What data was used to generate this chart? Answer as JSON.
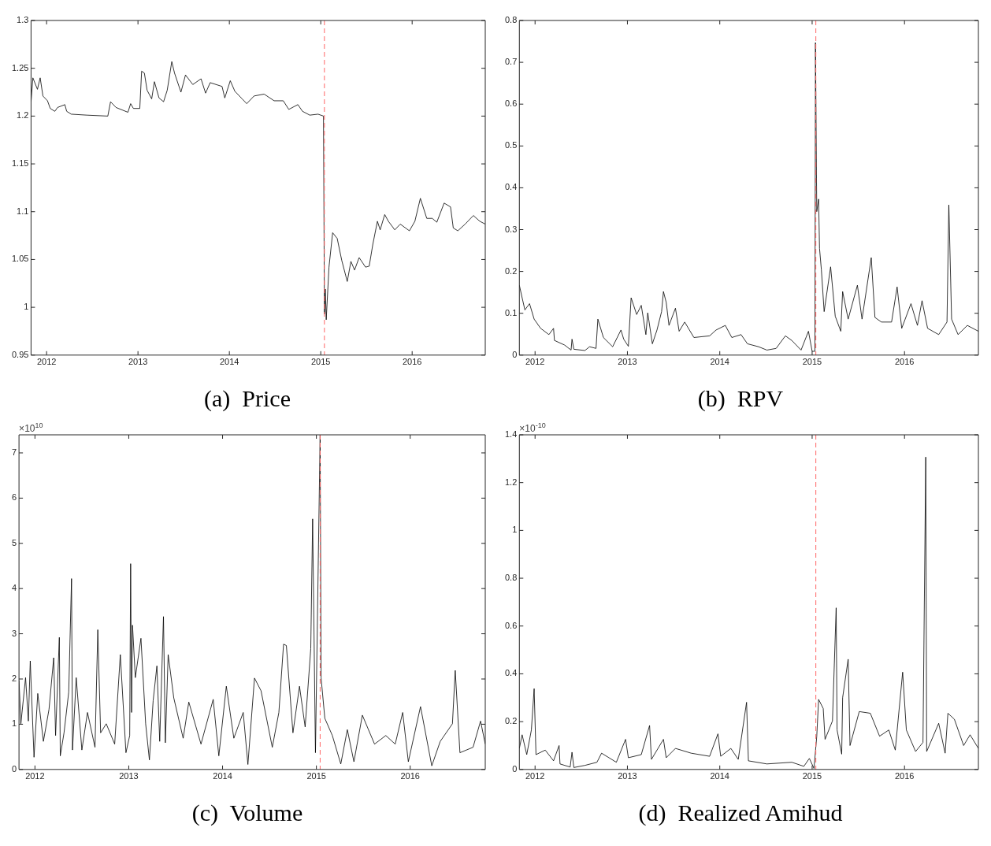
{
  "chart_data": [
    {
      "type": "line",
      "title": "(a)  Price",
      "xlim": [
        2011.83,
        2016.8
      ],
      "xticks": [
        2012,
        2013,
        2014,
        2015,
        2016
      ],
      "ylim": [
        0.95,
        1.3
      ],
      "yticks": [
        0.95,
        1,
        1.05,
        1.1,
        1.15,
        1.2,
        1.25,
        1.3
      ],
      "ref_lines": [
        {
          "axis": "x",
          "value": 2015.04,
          "color": "#ff6666",
          "line_style": "dashed"
        }
      ],
      "series": [
        {
          "color": "#000000",
          "x": [
            2011.83,
            2011.85,
            2011.9,
            2011.93,
            2011.96,
            2012.01,
            2012.04,
            2012.09,
            2012.12,
            2012.2,
            2012.22,
            2012.27,
            2012.44,
            2012.67,
            2012.7,
            2012.76,
            2012.89,
            2012.92,
            2012.95,
            2013.02,
            2013.04,
            2013.07,
            2013.1,
            2013.15,
            2013.18,
            2013.23,
            2013.28,
            2013.32,
            2013.37,
            2013.4,
            2013.47,
            2013.52,
            2013.6,
            2013.69,
            2013.74,
            2013.79,
            2013.92,
            2013.95,
            2014.01,
            2014.06,
            2014.14,
            2014.19,
            2014.27,
            2014.38,
            2014.49,
            2014.59,
            2014.65,
            2014.75,
            2014.8,
            2014.88,
            2014.97,
            2015.03,
            2015.04,
            2015.05,
            2015.06,
            2015.09,
            2015.13,
            2015.18,
            2015.23,
            2015.29,
            2015.33,
            2015.37,
            2015.42,
            2015.49,
            2015.53,
            2015.57,
            2015.62,
            2015.65,
            2015.7,
            2015.74,
            2015.81,
            2015.87,
            2015.97,
            2016.03,
            2016.09,
            2016.16,
            2016.22,
            2016.27,
            2016.35,
            2016.42,
            2016.45,
            2016.5,
            2016.58,
            2016.67,
            2016.74,
            2016.8
          ],
          "values": [
            1.215,
            1.24,
            1.228,
            1.24,
            1.221,
            1.216,
            1.208,
            1.205,
            1.209,
            1.212,
            1.205,
            1.202,
            1.201,
            1.2,
            1.215,
            1.209,
            1.204,
            1.213,
            1.208,
            1.208,
            1.247,
            1.245,
            1.227,
            1.218,
            1.236,
            1.219,
            1.215,
            1.227,
            1.257,
            1.245,
            1.225,
            1.243,
            1.233,
            1.239,
            1.224,
            1.235,
            1.231,
            1.219,
            1.237,
            1.226,
            1.218,
            1.213,
            1.221,
            1.223,
            1.216,
            1.216,
            1.207,
            1.212,
            1.205,
            1.201,
            1.202,
            1.2,
            0.993,
            1.019,
            0.987,
            1.042,
            1.078,
            1.072,
            1.049,
            1.027,
            1.048,
            1.039,
            1.052,
            1.042,
            1.043,
            1.066,
            1.09,
            1.081,
            1.097,
            1.09,
            1.081,
            1.087,
            1.08,
            1.09,
            1.114,
            1.093,
            1.093,
            1.089,
            1.109,
            1.105,
            1.083,
            1.08,
            1.087,
            1.096,
            1.09,
            1.087
          ]
        }
      ]
    },
    {
      "type": "line",
      "title": "(b)  RPV",
      "xlim": [
        2011.83,
        2016.8
      ],
      "xticks": [
        2012,
        2013,
        2014,
        2015,
        2016
      ],
      "ylim": [
        0,
        0.8
      ],
      "yticks": [
        0,
        0.1,
        0.2,
        0.3,
        0.4,
        0.5,
        0.6,
        0.7,
        0.8
      ],
      "ref_lines": [
        {
          "axis": "x",
          "value": 2015.04,
          "color": "#ff6666",
          "line_style": "dashed"
        }
      ],
      "series": [
        {
          "color": "#000000",
          "x": [
            2011.83,
            2011.86,
            2011.89,
            2011.94,
            2011.99,
            2012.06,
            2012.15,
            2012.2,
            2012.21,
            2012.32,
            2012.39,
            2012.4,
            2012.42,
            2012.54,
            2012.59,
            2012.66,
            2012.68,
            2012.74,
            2012.84,
            2012.93,
            2012.96,
            2013.01,
            2013.04,
            2013.1,
            2013.15,
            2013.2,
            2013.22,
            2013.27,
            2013.32,
            2013.37,
            2013.39,
            2013.42,
            2013.45,
            2013.52,
            2013.56,
            2013.62,
            2013.72,
            2013.89,
            2013.96,
            2014.06,
            2014.13,
            2014.23,
            2014.3,
            2014.42,
            2014.51,
            2014.61,
            2014.71,
            2014.78,
            2014.88,
            2014.96,
            2015,
            2015.03,
            2015.036,
            2015.05,
            2015.07,
            2015.08,
            2015.1,
            2015.13,
            2015.2,
            2015.25,
            2015.31,
            2015.33,
            2015.39,
            2015.49,
            2015.54,
            2015.64,
            2015.68,
            2015.75,
            2015.86,
            2015.92,
            2015.97,
            2016.07,
            2016.14,
            2016.19,
            2016.25,
            2016.37,
            2016.46,
            2016.48,
            2016.51,
            2016.58,
            2016.68,
            2016.8
          ],
          "values": [
            0.167,
            0.137,
            0.108,
            0.123,
            0.086,
            0.064,
            0.049,
            0.064,
            0.035,
            0.024,
            0.012,
            0.038,
            0.014,
            0.011,
            0.02,
            0.016,
            0.086,
            0.042,
            0.02,
            0.06,
            0.038,
            0.021,
            0.137,
            0.097,
            0.119,
            0.049,
            0.101,
            0.027,
            0.06,
            0.104,
            0.152,
            0.126,
            0.071,
            0.112,
            0.057,
            0.079,
            0.042,
            0.046,
            0.06,
            0.071,
            0.042,
            0.049,
            0.027,
            0.02,
            0.012,
            0.016,
            0.046,
            0.035,
            0.012,
            0.057,
            0.009,
            0.009,
            0.747,
            0.343,
            0.373,
            0.255,
            0.204,
            0.104,
            0.211,
            0.093,
            0.057,
            0.152,
            0.086,
            0.167,
            0.086,
            0.233,
            0.09,
            0.079,
            0.079,
            0.163,
            0.064,
            0.123,
            0.071,
            0.13,
            0.064,
            0.049,
            0.079,
            0.359,
            0.086,
            0.049,
            0.071,
            0.057
          ]
        }
      ]
    },
    {
      "type": "line",
      "title": "(c)  Volume",
      "xlim": [
        2011.83,
        2016.8
      ],
      "xticks": [
        2012,
        2013,
        2014,
        2015,
        2016
      ],
      "ylim": [
        0,
        7.4
      ],
      "yticks": [
        0,
        1,
        2,
        3,
        4,
        5,
        6,
        7
      ],
      "annotations": [
        "×10$^{10}$"
      ],
      "ref_lines": [
        {
          "axis": "x",
          "value": 2015.04,
          "color": "#ff6666",
          "line_style": "dashed"
        }
      ],
      "series": [
        {
          "color": "#000000",
          "x": [
            2011.83,
            2011.85,
            2011.9,
            2011.93,
            2011.95,
            2011.99,
            2012.03,
            2012.09,
            2012.15,
            2012.2,
            2012.22,
            2012.26,
            2012.27,
            2012.31,
            2012.36,
            2012.39,
            2012.4,
            2012.44,
            2012.5,
            2012.56,
            2012.64,
            2012.67,
            2012.7,
            2012.76,
            2012.85,
            2012.91,
            2012.97,
            2013.01,
            2013.02,
            2013.03,
            2013.04,
            2013.07,
            2013.13,
            2013.18,
            2013.22,
            2013.26,
            2013.3,
            2013.33,
            2013.37,
            2013.39,
            2013.42,
            2013.48,
            2013.58,
            2013.64,
            2013.77,
            2013.9,
            2013.96,
            2014.04,
            2014.12,
            2014.22,
            2014.27,
            2014.34,
            2014.41,
            2014.53,
            2014.6,
            2014.65,
            2014.68,
            2014.75,
            2014.82,
            2014.88,
            2014.94,
            2014.96,
            2014.99,
            2015.04,
            2015.05,
            2015.09,
            2015.17,
            2015.26,
            2015.33,
            2015.4,
            2015.49,
            2015.62,
            2015.74,
            2015.84,
            2015.92,
            2015.98,
            2016.11,
            2016.23,
            2016.32,
            2016.45,
            2016.48,
            2016.53,
            2016.67,
            2016.75,
            2016.8
          ],
          "values": [
            1.97,
            1.01,
            2.03,
            1.07,
            2.4,
            0.27,
            1.68,
            0.62,
            1.33,
            2.47,
            0.75,
            2.92,
            0.3,
            0.81,
            1.71,
            4.22,
            0.43,
            2.03,
            0.43,
            1.26,
            0.49,
            3.09,
            0.81,
            1.01,
            0.56,
            2.54,
            0.37,
            0.75,
            4.55,
            1.26,
            3.19,
            2.03,
            2.9,
            1.01,
            0.21,
            1.52,
            2.29,
            0.62,
            3.38,
            0.59,
            2.54,
            1.58,
            0.69,
            1.49,
            0.56,
            1.55,
            0.3,
            1.84,
            0.69,
            1.26,
            0.11,
            2.02,
            1.74,
            0.49,
            1.26,
            2.77,
            2.74,
            0.81,
            1.84,
            0.94,
            2.67,
            5.54,
            0.37,
            7.4,
            2.03,
            1.13,
            0.75,
            0.12,
            0.88,
            0.17,
            1.2,
            0.56,
            0.75,
            0.56,
            1.26,
            0.17,
            1.39,
            0.08,
            0.62,
            1.01,
            2.19,
            0.37,
            0.49,
            1.07,
            0.56
          ]
        }
      ]
    },
    {
      "type": "line",
      "title": "(d)  Realized Amihud",
      "xlim": [
        2011.83,
        2016.8
      ],
      "xticks": [
        2012,
        2013,
        2014,
        2015,
        2016
      ],
      "ylim": [
        0,
        1.4
      ],
      "yticks": [
        0,
        0.2,
        0.4,
        0.6,
        0.8,
        1,
        1.2,
        1.4
      ],
      "annotations": [
        "×10$^{-10}$"
      ],
      "ref_lines": [
        {
          "axis": "x",
          "value": 2015.04,
          "color": "#ff6666",
          "line_style": "dashed"
        }
      ],
      "series": [
        {
          "color": "#000000",
          "x": [
            2011.83,
            2011.86,
            2011.91,
            2011.96,
            2011.99,
            2012.01,
            2012.11,
            2012.2,
            2012.26,
            2012.27,
            2012.38,
            2012.4,
            2012.42,
            2012.54,
            2012.67,
            2012.72,
            2012.88,
            2012.98,
            2013.01,
            2013.15,
            2013.24,
            2013.26,
            2013.39,
            2013.42,
            2013.52,
            2013.69,
            2013.89,
            2013.98,
            2014.01,
            2014.12,
            2014.2,
            2014.29,
            2014.31,
            2014.51,
            2014.78,
            2014.91,
            2014.97,
            2015.02,
            2015.05,
            2015.07,
            2015.12,
            2015.14,
            2015.22,
            2015.26,
            2015.27,
            2015.32,
            2015.33,
            2015.39,
            2015.41,
            2015.51,
            2015.63,
            2015.73,
            2015.83,
            2015.9,
            2015.98,
            2016.02,
            2016.12,
            2016.2,
            2016.23,
            2016.24,
            2016.37,
            2016.44,
            2016.47,
            2016.54,
            2016.64,
            2016.71,
            2016.8
          ],
          "values": [
            0.088,
            0.145,
            0.062,
            0.165,
            0.338,
            0.062,
            0.081,
            0.036,
            0.1,
            0.023,
            0.01,
            0.072,
            0.008,
            0.017,
            0.03,
            0.068,
            0.03,
            0.126,
            0.049,
            0.062,
            0.184,
            0.042,
            0.126,
            0.049,
            0.088,
            0.068,
            0.055,
            0.149,
            0.055,
            0.088,
            0.042,
            0.281,
            0.036,
            0.023,
            0.03,
            0.013,
            0.046,
            0.004,
            0.139,
            0.293,
            0.255,
            0.126,
            0.203,
            0.676,
            0.165,
            0.064,
            0.3,
            0.461,
            0.1,
            0.242,
            0.235,
            0.139,
            0.165,
            0.081,
            0.407,
            0.165,
            0.075,
            0.113,
            1.307,
            0.075,
            0.193,
            0.068,
            0.235,
            0.21,
            0.1,
            0.145,
            0.088
          ]
        }
      ]
    }
  ]
}
